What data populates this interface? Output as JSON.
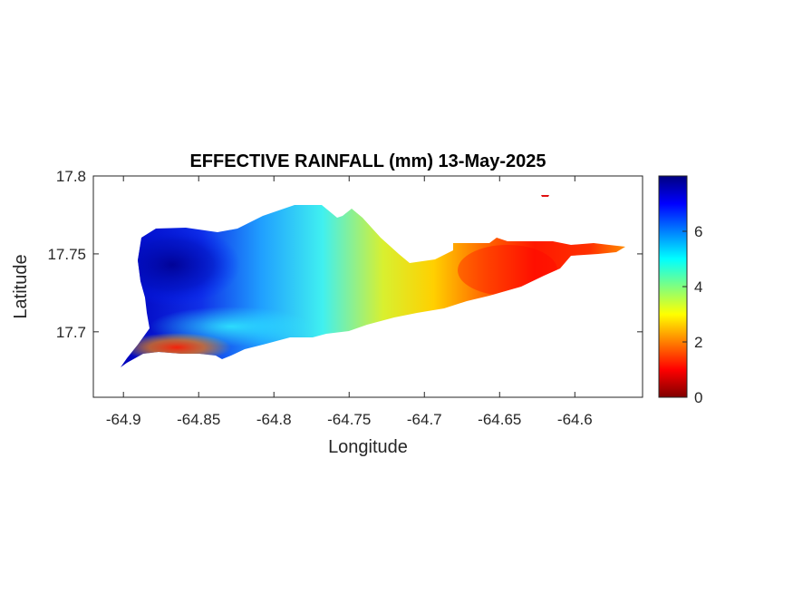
{
  "chart_data": {
    "type": "heatmap",
    "title": "EFFECTIVE RAINFALL (mm) 13-May-2025",
    "xlabel": "Longitude",
    "ylabel": "Latitude",
    "xlim": [
      -64.92,
      -64.555
    ],
    "ylim": [
      17.658,
      17.8
    ],
    "xticks": [
      -64.9,
      -64.85,
      -64.8,
      -64.75,
      -64.7,
      -64.65,
      -64.6
    ],
    "xtick_labels": [
      "-64.9",
      "-64.85",
      "-64.8",
      "-64.75",
      "-64.7",
      "-64.65",
      "-64.6"
    ],
    "yticks": [
      17.7,
      17.75,
      17.8
    ],
    "ytick_labels": [
      "17.7",
      "17.75",
      "17.8"
    ],
    "colorbar": {
      "colormap": "jet",
      "range": [
        0,
        8
      ],
      "ticks": [
        0,
        2,
        4,
        6
      ],
      "tick_labels": [
        "0",
        "2",
        "4",
        "6"
      ]
    },
    "grid": false,
    "surface_samples": [
      {
        "lon": -64.88,
        "lat": 17.745,
        "value": 7.4
      },
      {
        "lon": -64.86,
        "lat": 17.755,
        "value": 7.0
      },
      {
        "lon": -64.85,
        "lat": 17.735,
        "value": 6.8
      },
      {
        "lon": -64.875,
        "lat": 17.718,
        "value": 5.8
      },
      {
        "lon": -64.82,
        "lat": 17.75,
        "value": 5.0
      },
      {
        "lon": -64.8,
        "lat": 17.73,
        "value": 5.2
      },
      {
        "lon": -64.79,
        "lat": 17.765,
        "value": 3.8
      },
      {
        "lon": -64.77,
        "lat": 17.71,
        "value": 4.8
      },
      {
        "lon": -64.75,
        "lat": 17.75,
        "value": 3.5
      },
      {
        "lon": -64.73,
        "lat": 17.72,
        "value": 3.2
      },
      {
        "lon": -64.72,
        "lat": 17.75,
        "value": 2.0
      },
      {
        "lon": -64.7,
        "lat": 17.735,
        "value": 1.8
      },
      {
        "lon": -64.67,
        "lat": 17.75,
        "value": 1.0
      },
      {
        "lon": -64.65,
        "lat": 17.738,
        "value": 0.9
      },
      {
        "lon": -64.62,
        "lat": 17.75,
        "value": 1.2
      },
      {
        "lon": -64.58,
        "lat": 17.753,
        "value": 1.8
      },
      {
        "lon": -64.86,
        "lat": 17.692,
        "value": 1.8
      },
      {
        "lon": -64.89,
        "lat": 17.683,
        "value": 0.8
      },
      {
        "lon": -64.83,
        "lat": 17.695,
        "value": 3.6
      },
      {
        "lon": -64.8,
        "lat": 17.7,
        "value": 4.0
      }
    ],
    "colors": {
      "jet_stops": [
        "#7f0000",
        "#ff0000",
        "#ffff00",
        "#00ffff",
        "#0000ff",
        "#00008f"
      ]
    }
  }
}
